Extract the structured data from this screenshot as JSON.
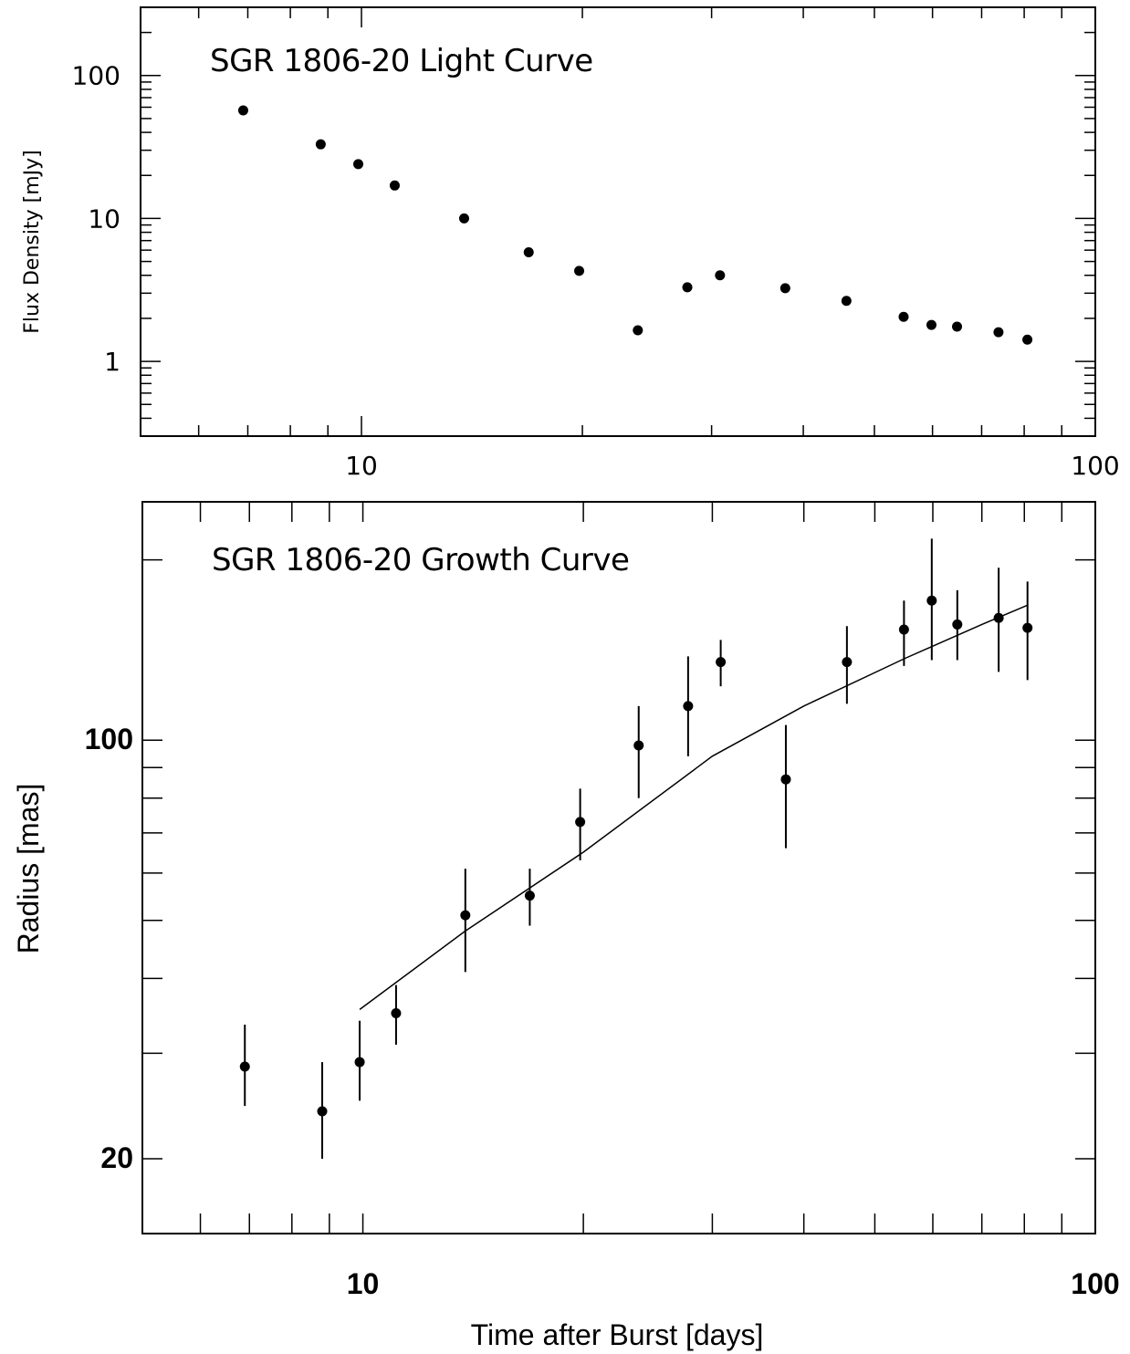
{
  "chart_data": [
    {
      "type": "scatter",
      "title": "SGR 1806-20 Light Curve",
      "xlabel": "",
      "ylabel": "Flux Density [mJy]",
      "xscale": "log",
      "yscale": "log",
      "xlim": [
        5,
        100
      ],
      "ylim": [
        0.3,
        300
      ],
      "x_tick_labels": [
        {
          "value": 10,
          "label": "10"
        },
        {
          "value": 100,
          "label": "100"
        }
      ],
      "y_tick_labels": [
        {
          "value": 1,
          "label": "1"
        },
        {
          "value": 10,
          "label": "10"
        },
        {
          "value": 100,
          "label": "100"
        }
      ],
      "grid": false,
      "series": [
        {
          "x": [
            6.9,
            8.8,
            9.9,
            11.1,
            13.8,
            16.9,
            19.8,
            23.8,
            27.8,
            30.8,
            37.8,
            45.8,
            54.8,
            59.8,
            64.8,
            73.8,
            80.8
          ],
          "y": [
            57,
            33,
            24,
            17,
            10,
            5.8,
            4.3,
            1.65,
            3.3,
            4.0,
            3.25,
            2.65,
            2.05,
            1.8,
            1.75,
            1.6,
            1.42
          ]
        }
      ]
    },
    {
      "type": "scatter",
      "title": "SGR 1806-20 Growth Curve",
      "xlabel": "Time after Burst [days]",
      "ylabel": "Radius [mas]",
      "xscale": "log",
      "yscale": "log",
      "xlim": [
        5,
        100
      ],
      "ylim": [
        15,
        250
      ],
      "x_tick_labels": [
        {
          "value": 10,
          "label": "10"
        },
        {
          "value": 100,
          "label": "100"
        }
      ],
      "y_tick_labels": [
        {
          "value": 20,
          "label": "20"
        },
        {
          "value": 100,
          "label": "100"
        }
      ],
      "grid": false,
      "series": [
        {
          "x": [
            6.9,
            8.8,
            9.9,
            11.1,
            13.8,
            16.9,
            19.8,
            23.8,
            27.8,
            30.8,
            37.8,
            45.8,
            54.8,
            59.8,
            64.8,
            73.8,
            80.8
          ],
          "y": [
            28.5,
            24,
            29,
            35,
            51,
            55,
            73,
            98,
            114,
            135,
            86,
            135,
            153,
            171,
            156,
            160,
            154
          ],
          "y_err_low": [
            4,
            4,
            4,
            4,
            10,
            6,
            10,
            18,
            20,
            12,
            20,
            20,
            20,
            35,
            20,
            30,
            28
          ],
          "y_err_high": [
            5,
            5,
            5,
            4,
            10,
            6,
            10,
            16,
            24,
            12,
            20,
            20,
            18,
            46,
            22,
            34,
            30
          ]
        },
        {
          "type": "line",
          "x": [
            9.9,
            13.8,
            20,
            30,
            40,
            55,
            70,
            80.8
          ],
          "y": [
            35.5,
            48,
            65,
            94,
            114,
            137,
            156,
            168
          ]
        }
      ]
    }
  ]
}
